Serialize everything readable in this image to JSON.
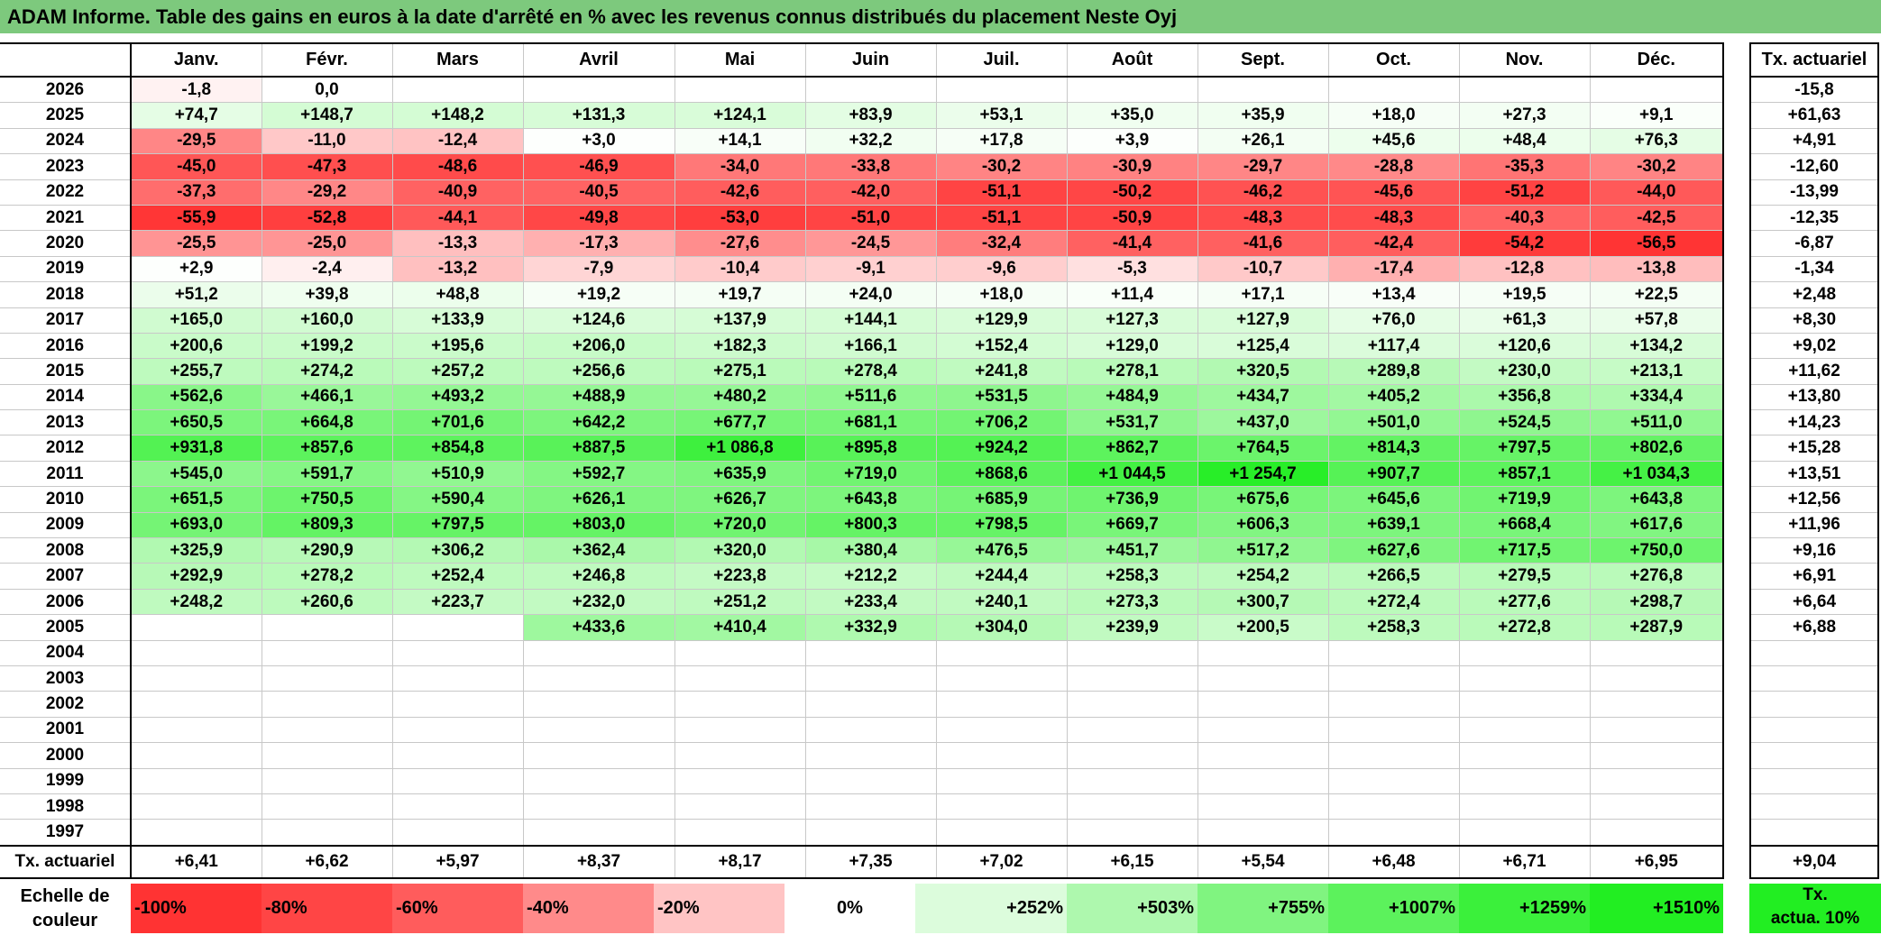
{
  "title": "ADAM Informe. Table des gains en euros à la date d'arrêté en % avec les revenus connus distribués du placement Neste Oyj",
  "months": [
    "Janv.",
    "Févr.",
    "Mars",
    "Avril",
    "Mai",
    "Juin",
    "Juil.",
    "Août",
    "Sept.",
    "Oct.",
    "Nov.",
    "Déc."
  ],
  "side_header": "Tx. actuariel",
  "rows": [
    {
      "year": "2026",
      "cells": [
        "-1,8",
        "0,0",
        "",
        "",
        "",
        "",
        "",
        "",
        "",
        "",
        "",
        ""
      ],
      "rate": "-15,8"
    },
    {
      "year": "2025",
      "cells": [
        "+74,7",
        "+148,7",
        "+148,2",
        "+131,3",
        "+124,1",
        "+83,9",
        "+53,1",
        "+35,0",
        "+35,9",
        "+18,0",
        "+27,3",
        "+9,1"
      ],
      "rate": "+61,63"
    },
    {
      "year": "2024",
      "cells": [
        "-29,5",
        "-11,0",
        "-12,4",
        "+3,0",
        "+14,1",
        "+32,2",
        "+17,8",
        "+3,9",
        "+26,1",
        "+45,6",
        "+48,4",
        "+76,3"
      ],
      "rate": "+4,91"
    },
    {
      "year": "2023",
      "cells": [
        "-45,0",
        "-47,3",
        "-48,6",
        "-46,9",
        "-34,0",
        "-33,8",
        "-30,2",
        "-30,9",
        "-29,7",
        "-28,8",
        "-35,3",
        "-30,2"
      ],
      "rate": "-12,60"
    },
    {
      "year": "2022",
      "cells": [
        "-37,3",
        "-29,2",
        "-40,9",
        "-40,5",
        "-42,6",
        "-42,0",
        "-51,1",
        "-50,2",
        "-46,2",
        "-45,6",
        "-51,2",
        "-44,0"
      ],
      "rate": "-13,99"
    },
    {
      "year": "2021",
      "cells": [
        "-55,9",
        "-52,8",
        "-44,1",
        "-49,8",
        "-53,0",
        "-51,0",
        "-51,1",
        "-50,9",
        "-48,3",
        "-48,3",
        "-40,3",
        "-42,5"
      ],
      "rate": "-12,35"
    },
    {
      "year": "2020",
      "cells": [
        "-25,5",
        "-25,0",
        "-13,3",
        "-17,3",
        "-27,6",
        "-24,5",
        "-32,4",
        "-41,4",
        "-41,6",
        "-42,4",
        "-54,2",
        "-56,5"
      ],
      "rate": "-6,87"
    },
    {
      "year": "2019",
      "cells": [
        "+2,9",
        "-2,4",
        "-13,2",
        "-7,9",
        "-10,4",
        "-9,1",
        "-9,6",
        "-5,3",
        "-10,7",
        "-17,4",
        "-12,8",
        "-13,8"
      ],
      "rate": "-1,34"
    },
    {
      "year": "2018",
      "cells": [
        "+51,2",
        "+39,8",
        "+48,8",
        "+19,2",
        "+19,7",
        "+24,0",
        "+18,0",
        "+11,4",
        "+17,1",
        "+13,4",
        "+19,5",
        "+22,5"
      ],
      "rate": "+2,48"
    },
    {
      "year": "2017",
      "cells": [
        "+165,0",
        "+160,0",
        "+133,9",
        "+124,6",
        "+137,9",
        "+144,1",
        "+129,9",
        "+127,3",
        "+127,9",
        "+76,0",
        "+61,3",
        "+57,8"
      ],
      "rate": "+8,30"
    },
    {
      "year": "2016",
      "cells": [
        "+200,6",
        "+199,2",
        "+195,6",
        "+206,0",
        "+182,3",
        "+166,1",
        "+152,4",
        "+129,0",
        "+125,4",
        "+117,4",
        "+120,6",
        "+134,2"
      ],
      "rate": "+9,02"
    },
    {
      "year": "2015",
      "cells": [
        "+255,7",
        "+274,2",
        "+257,2",
        "+256,6",
        "+275,1",
        "+278,4",
        "+241,8",
        "+278,1",
        "+320,5",
        "+289,8",
        "+230,0",
        "+213,1"
      ],
      "rate": "+11,62"
    },
    {
      "year": "2014",
      "cells": [
        "+562,6",
        "+466,1",
        "+493,2",
        "+488,9",
        "+480,2",
        "+511,6",
        "+531,5",
        "+484,9",
        "+434,7",
        "+405,2",
        "+356,8",
        "+334,4"
      ],
      "rate": "+13,80"
    },
    {
      "year": "2013",
      "cells": [
        "+650,5",
        "+664,8",
        "+701,6",
        "+642,2",
        "+677,7",
        "+681,1",
        "+706,2",
        "+531,7",
        "+437,0",
        "+501,0",
        "+524,5",
        "+511,0"
      ],
      "rate": "+14,23"
    },
    {
      "year": "2012",
      "cells": [
        "+931,8",
        "+857,6",
        "+854,8",
        "+887,5",
        "+1 086,8",
        "+895,8",
        "+924,2",
        "+862,7",
        "+764,5",
        "+814,3",
        "+797,5",
        "+802,6"
      ],
      "rate": "+15,28"
    },
    {
      "year": "2011",
      "cells": [
        "+545,0",
        "+591,7",
        "+510,9",
        "+592,7",
        "+635,9",
        "+719,0",
        "+868,6",
        "+1 044,5",
        "+1 254,7",
        "+907,7",
        "+857,1",
        "+1 034,3"
      ],
      "rate": "+13,51"
    },
    {
      "year": "2010",
      "cells": [
        "+651,5",
        "+750,5",
        "+590,4",
        "+626,1",
        "+626,7",
        "+643,8",
        "+685,9",
        "+736,9",
        "+675,6",
        "+645,6",
        "+719,9",
        "+643,8"
      ],
      "rate": "+12,56"
    },
    {
      "year": "2009",
      "cells": [
        "+693,0",
        "+809,3",
        "+797,5",
        "+803,0",
        "+720,0",
        "+800,3",
        "+798,5",
        "+669,7",
        "+606,3",
        "+639,1",
        "+668,4",
        "+617,6"
      ],
      "rate": "+11,96"
    },
    {
      "year": "2008",
      "cells": [
        "+325,9",
        "+290,9",
        "+306,2",
        "+362,4",
        "+320,0",
        "+380,4",
        "+476,5",
        "+451,7",
        "+517,2",
        "+627,6",
        "+717,5",
        "+750,0"
      ],
      "rate": "+9,16"
    },
    {
      "year": "2007",
      "cells": [
        "+292,9",
        "+278,2",
        "+252,4",
        "+246,8",
        "+223,8",
        "+212,2",
        "+244,4",
        "+258,3",
        "+254,2",
        "+266,5",
        "+279,5",
        "+276,8"
      ],
      "rate": "+6,91"
    },
    {
      "year": "2006",
      "cells": [
        "+248,2",
        "+260,6",
        "+223,7",
        "+232,0",
        "+251,2",
        "+233,4",
        "+240,1",
        "+273,3",
        "+300,7",
        "+272,4",
        "+277,6",
        "+298,7"
      ],
      "rate": "+6,64"
    },
    {
      "year": "2005",
      "cells": [
        "",
        "",
        "",
        "+433,6",
        "+410,4",
        "+332,9",
        "+304,0",
        "+239,9",
        "+200,5",
        "+258,3",
        "+272,8",
        "+287,9"
      ],
      "rate": "+6,88"
    },
    {
      "year": "2004",
      "cells": [
        "",
        "",
        "",
        "",
        "",
        "",
        "",
        "",
        "",
        "",
        "",
        ""
      ],
      "rate": ""
    },
    {
      "year": "2003",
      "cells": [
        "",
        "",
        "",
        "",
        "",
        "",
        "",
        "",
        "",
        "",
        "",
        ""
      ],
      "rate": ""
    },
    {
      "year": "2002",
      "cells": [
        "",
        "",
        "",
        "",
        "",
        "",
        "",
        "",
        "",
        "",
        "",
        ""
      ],
      "rate": ""
    },
    {
      "year": "2001",
      "cells": [
        "",
        "",
        "",
        "",
        "",
        "",
        "",
        "",
        "",
        "",
        "",
        ""
      ],
      "rate": ""
    },
    {
      "year": "2000",
      "cells": [
        "",
        "",
        "",
        "",
        "",
        "",
        "",
        "",
        "",
        "",
        "",
        ""
      ],
      "rate": ""
    },
    {
      "year": "1999",
      "cells": [
        "",
        "",
        "",
        "",
        "",
        "",
        "",
        "",
        "",
        "",
        "",
        ""
      ],
      "rate": ""
    },
    {
      "year": "1998",
      "cells": [
        "",
        "",
        "",
        "",
        "",
        "",
        "",
        "",
        "",
        "",
        "",
        ""
      ],
      "rate": ""
    },
    {
      "year": "1997",
      "cells": [
        "",
        "",
        "",
        "",
        "",
        "",
        "",
        "",
        "",
        "",
        "",
        ""
      ],
      "rate": ""
    }
  ],
  "totals": {
    "label": "Tx. actuariel",
    "cells": [
      "+6,41",
      "+6,62",
      "+5,97",
      "+8,37",
      "+8,17",
      "+7,35",
      "+7,02",
      "+6,15",
      "+5,54",
      "+6,48",
      "+6,71",
      "+6,95"
    ],
    "rate": "+9,04"
  },
  "scale": {
    "label_line1": "Echelle de",
    "label_line2": "couleur",
    "steps": [
      {
        "text": "-100%",
        "color": "#ff3333",
        "align": "left"
      },
      {
        "text": "-80%",
        "color": "#ff4545",
        "align": "left"
      },
      {
        "text": "-60%",
        "color": "#ff5c5c",
        "align": "left"
      },
      {
        "text": "-40%",
        "color": "#ff8a8a",
        "align": "left"
      },
      {
        "text": "-20%",
        "color": "#ffc4c4",
        "align": "left"
      },
      {
        "text": "0%",
        "color": "#ffffff",
        "align": "center"
      },
      {
        "text": "+252%",
        "color": "#dcfcdc",
        "align": "right"
      },
      {
        "text": "+503%",
        "color": "#aef8ae",
        "align": "right"
      },
      {
        "text": "+755%",
        "color": "#80f480",
        "align": "right"
      },
      {
        "text": "+1007%",
        "color": "#5cf25c",
        "align": "right"
      },
      {
        "text": "+1259%",
        "color": "#3bf03b",
        "align": "right"
      },
      {
        "text": "+1510%",
        "color": "#22ee22",
        "align": "right"
      }
    ],
    "side_line1": "Tx.",
    "side_line2": "actua. 10%"
  },
  "colors": {
    "title_bg": "#7dc97d",
    "neg_max": "#ff2a2a",
    "pos_max": "#22ee22"
  }
}
